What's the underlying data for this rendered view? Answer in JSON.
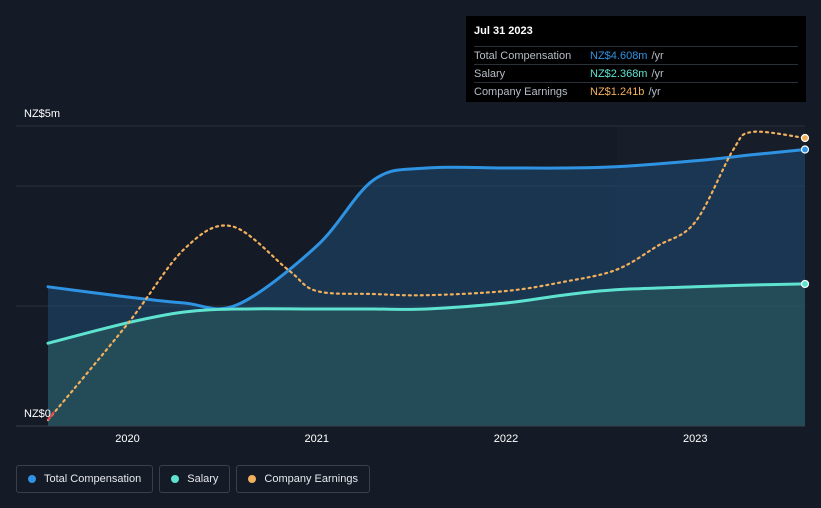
{
  "tooltip": {
    "date": "Jul 31 2023",
    "rows": [
      {
        "label": "Total Compensation",
        "value": "NZ$4.608m",
        "unit": "/yr",
        "color": "#2e93e3"
      },
      {
        "label": "Salary",
        "value": "NZ$2.368m",
        "unit": "/yr",
        "color": "#5ee3d0"
      },
      {
        "label": "Company Earnings",
        "value": "NZ$1.241b",
        "unit": "/yr",
        "color": "#f2b05c"
      }
    ]
  },
  "axis": {
    "y_top_label": "NZ$5m",
    "y_bottom_label": "NZ$0"
  },
  "legend": {
    "items": [
      {
        "label": "Total Compensation",
        "color": "#2e93e3"
      },
      {
        "label": "Salary",
        "color": "#5ee3d0"
      },
      {
        "label": "Company Earnings",
        "color": "#f2b05c"
      }
    ]
  },
  "chart_data": {
    "type": "line",
    "title": "",
    "x_ticks": [
      "2020",
      "2021",
      "2022",
      "2023"
    ],
    "x_tick_values": [
      2020.0,
      2021.0,
      2022.0,
      2023.0
    ],
    "xlim": [
      2019.58,
      2023.58
    ],
    "ylim": [
      0,
      5
    ],
    "y_unit": "NZ$m",
    "grid": true,
    "legend_position": "bottom-left",
    "series": [
      {
        "name": "Total Compensation",
        "color": "#2e93e3",
        "style": "solid-area",
        "x": [
          2019.58,
          2020.0,
          2020.3,
          2020.58,
          2021.0,
          2021.3,
          2021.58,
          2022.0,
          2022.3,
          2022.58,
          2023.0,
          2023.3,
          2023.58
        ],
        "y": [
          2.32,
          2.15,
          2.05,
          2.02,
          3.0,
          4.1,
          4.3,
          4.3,
          4.3,
          4.32,
          4.42,
          4.52,
          4.608
        ]
      },
      {
        "name": "Salary",
        "color": "#5ee3d0",
        "style": "solid-area",
        "x": [
          2019.58,
          2020.0,
          2020.3,
          2020.58,
          2021.0,
          2021.3,
          2021.58,
          2022.0,
          2022.3,
          2022.58,
          2023.0,
          2023.3,
          2023.58
        ],
        "y": [
          1.38,
          1.72,
          1.9,
          1.95,
          1.95,
          1.95,
          1.95,
          2.05,
          2.18,
          2.27,
          2.32,
          2.35,
          2.368
        ]
      },
      {
        "name": "Company Earnings",
        "color": "#f2b05c",
        "style": "dotted",
        "note_scale": "own scale, rescaled to chart height",
        "x": [
          2019.58,
          2020.0,
          2020.3,
          2020.55,
          2020.85,
          2021.0,
          2021.3,
          2021.58,
          2022.0,
          2022.3,
          2022.58,
          2022.8,
          2023.0,
          2023.2,
          2023.3,
          2023.58
        ],
        "y": [
          0.1,
          1.7,
          2.95,
          3.33,
          2.6,
          2.25,
          2.2,
          2.18,
          2.25,
          2.4,
          2.6,
          3.0,
          3.4,
          4.6,
          4.9,
          4.8
        ]
      }
    ]
  }
}
